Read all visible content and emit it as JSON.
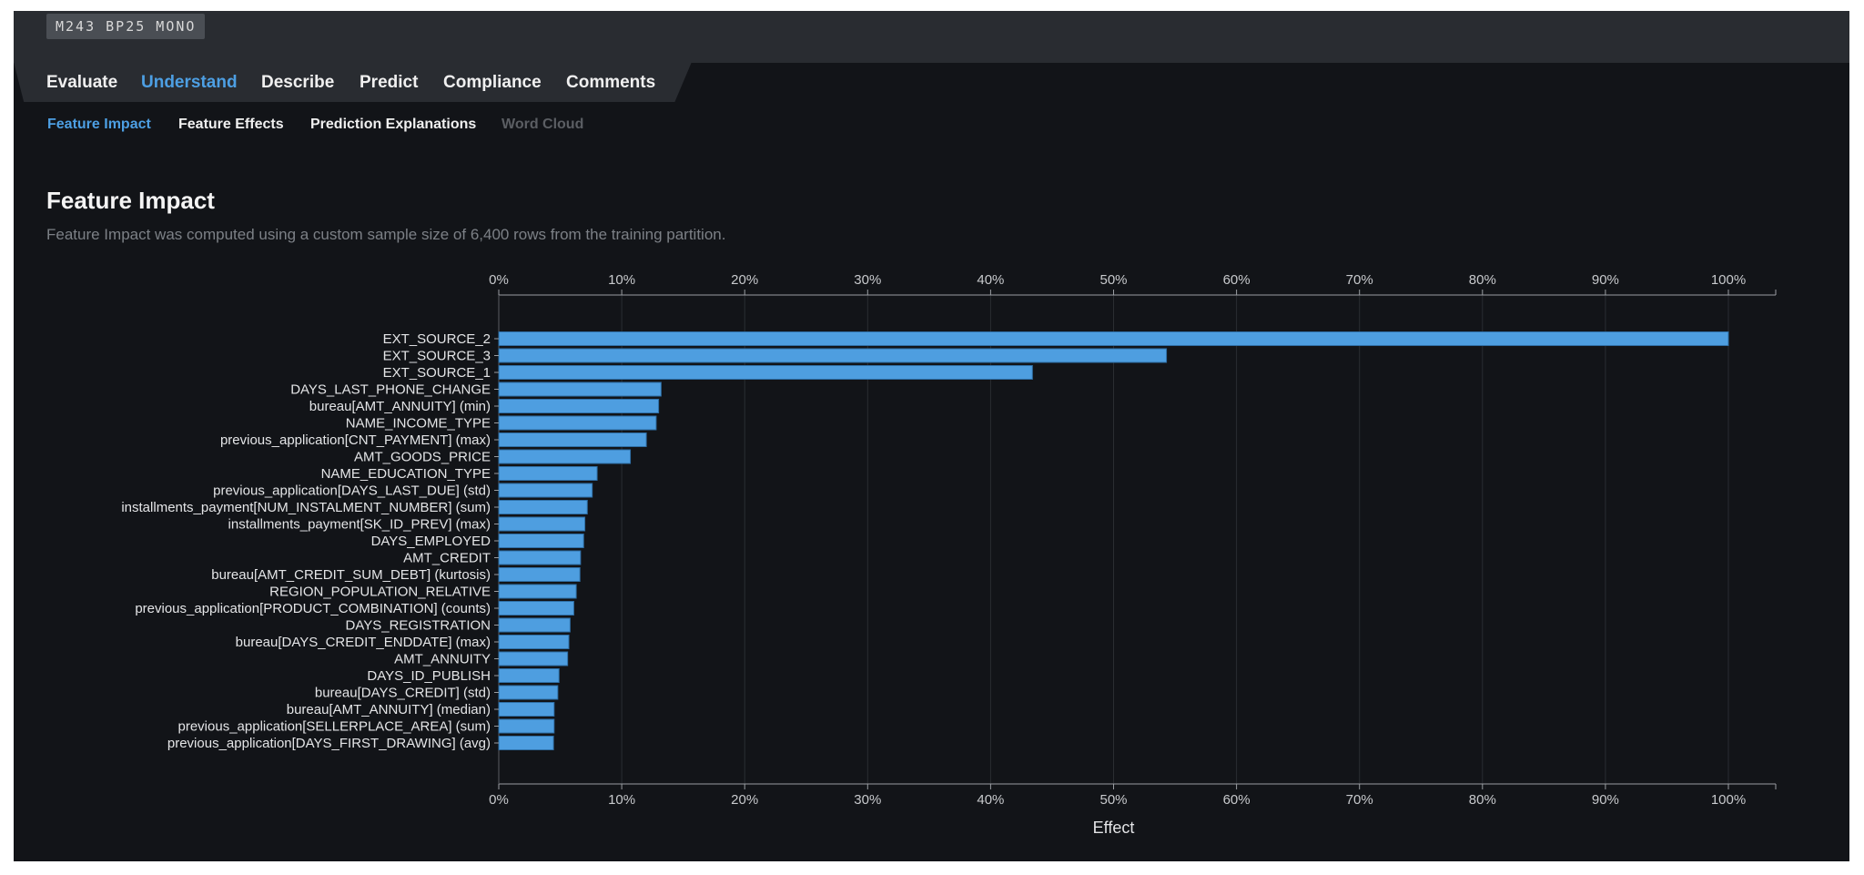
{
  "header": {
    "model_badge": "M243  BP25  MONO"
  },
  "tabs": [
    {
      "label": "Evaluate"
    },
    {
      "label": "Understand",
      "active": true
    },
    {
      "label": "Describe"
    },
    {
      "label": "Predict"
    },
    {
      "label": "Compliance"
    },
    {
      "label": "Comments"
    }
  ],
  "subtabs": [
    {
      "label": "Feature Impact",
      "active": true
    },
    {
      "label": "Feature Effects"
    },
    {
      "label": "Prediction Explanations"
    },
    {
      "label": "Word Cloud",
      "disabled": true
    }
  ],
  "page": {
    "title": "Feature Impact",
    "subtitle": "Feature Impact was computed using a custom sample size of 6,400 rows from the training partition."
  },
  "colors": {
    "bar": "#4e9ee0",
    "accent": "#4d9fe3",
    "background": "#121418"
  },
  "chart_data": {
    "type": "bar",
    "orientation": "horizontal",
    "xlabel": "Effect",
    "xlim": [
      0,
      100
    ],
    "x_ticks": [
      "0%",
      "10%",
      "20%",
      "30%",
      "40%",
      "50%",
      "60%",
      "70%",
      "80%",
      "90%",
      "100%"
    ],
    "grid": true,
    "categories": [
      "EXT_SOURCE_2",
      "EXT_SOURCE_3",
      "EXT_SOURCE_1",
      "DAYS_LAST_PHONE_CHANGE",
      "bureau[AMT_ANNUITY] (min)",
      "NAME_INCOME_TYPE",
      "previous_application[CNT_PAYMENT] (max)",
      "AMT_GOODS_PRICE",
      "NAME_EDUCATION_TYPE",
      "previous_application[DAYS_LAST_DUE] (std)",
      "installments_payment[NUM_INSTALMENT_NUMBER] (sum)",
      "installments_payment[SK_ID_PREV] (max)",
      "DAYS_EMPLOYED",
      "AMT_CREDIT",
      "bureau[AMT_CREDIT_SUM_DEBT] (kurtosis)",
      "REGION_POPULATION_RELATIVE",
      "previous_application[PRODUCT_COMBINATION] (counts)",
      "DAYS_REGISTRATION",
      "bureau[DAYS_CREDIT_ENDDATE] (max)",
      "AMT_ANNUITY",
      "DAYS_ID_PUBLISH",
      "bureau[DAYS_CREDIT] (std)",
      "bureau[AMT_ANNUITY] (median)",
      "previous_application[SELLERPLACE_AREA] (sum)",
      "previous_application[DAYS_FIRST_DRAWING] (avg)"
    ],
    "values": [
      100,
      54.3,
      43.4,
      13.2,
      13.0,
      12.8,
      12.0,
      10.7,
      8.0,
      7.6,
      7.2,
      7.0,
      6.9,
      6.65,
      6.6,
      6.3,
      6.1,
      5.8,
      5.7,
      5.6,
      4.9,
      4.8,
      4.5,
      4.5,
      4.45
    ]
  }
}
